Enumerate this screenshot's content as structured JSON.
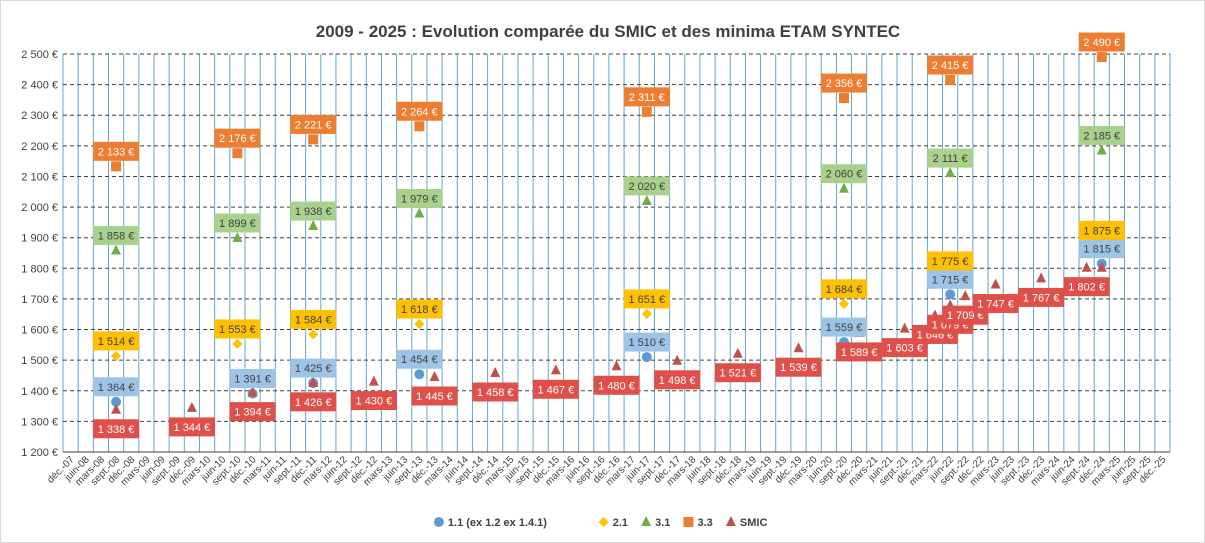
{
  "chart_data": {
    "type": "scatter",
    "title": "2009 - 2025 : Evolution  comparée  du SMIC et des minima  ETAM  SYNTEC",
    "xlabel": "",
    "ylabel": "",
    "ylim": [
      1200,
      2500
    ],
    "ystep": 100,
    "y_tick_labels": [
      "1 200 €",
      "1 300 €",
      "1 400 €",
      "1 500 €",
      "1 600 €",
      "1 700 €",
      "1 800 €",
      "1 900 €",
      "2 000 €",
      "2 100 €",
      "2 200 €",
      "2 300 €",
      "2 400 €",
      "2 500 €"
    ],
    "grid": true,
    "legend_position": "bottom",
    "categories": [
      "déc.-07",
      "juin-08",
      "mars-08",
      "sept.-08",
      "déc.-08",
      "mars-09",
      "juin-09",
      "sept.-09",
      "déc.-09",
      "mars-10",
      "juin-10",
      "sept.-10",
      "déc.-10",
      "mars-11",
      "juin-11",
      "sept.-11",
      "déc.-11",
      "mars-12",
      "juin-12",
      "sept.-12",
      "déc.-12",
      "mars-13",
      "juin-13",
      "sept.-13",
      "déc.-13",
      "mars-14",
      "juin-14",
      "sept.-14",
      "déc.-14",
      "mars-15",
      "juin-15",
      "sept.-15",
      "déc.-15",
      "mars-16",
      "juin-16",
      "sept.-16",
      "déc.-16",
      "mars-17",
      "juin-17",
      "sept.-17",
      "déc.-17",
      "mars-18",
      "juin-18",
      "sept.-18",
      "déc.-18",
      "mars-19",
      "juin-19",
      "sept.-19",
      "déc.-19",
      "mars-20",
      "juin-20",
      "sept.-20",
      "déc.-20",
      "mars-21",
      "juin-21",
      "sept.-21",
      "déc.-21",
      "mars-22",
      "juin-22",
      "sept.-22",
      "déc.-22",
      "mars-23",
      "juin-23",
      "sept.-23",
      "déc.-23",
      "mars-24",
      "juin-24",
      "sept.-24",
      "déc.-24",
      "mars-25",
      "juin-25",
      "sept.-25",
      "déc.-25"
    ],
    "series": [
      {
        "name": "1.1 (ex 1.2 ex 1.4.1)",
        "marker": "circle",
        "color": "#5b9bd5",
        "label_bg": "#9dc3e6",
        "label_color": "#404040",
        "points": [
          {
            "x": "sept.-08",
            "y": 1364,
            "label": "1 364 €"
          },
          {
            "x": "déc.-10",
            "y": 1391,
            "label": "1 391 €"
          },
          {
            "x": "déc.-11",
            "y": 1425,
            "label": "1 425 €"
          },
          {
            "x": "sept.-13",
            "y": 1454,
            "label": "1 454 €"
          },
          {
            "x": "juin-17",
            "y": 1510,
            "label": "1 510 €"
          },
          {
            "x": "sept.-20",
            "y": 1559,
            "label": "1 559 €"
          },
          {
            "x": "juin-22",
            "y": 1715,
            "label": "1 715 €"
          },
          {
            "x": "déc.-24",
            "y": 1815,
            "label": "1 815 €"
          }
        ]
      },
      {
        "name": "2.1",
        "marker": "diamond",
        "color": "#ffc000",
        "label_bg": "#ffc000",
        "label_color": "#404040",
        "points": [
          {
            "x": "sept.-08",
            "y": 1514,
            "label": "1 514 €"
          },
          {
            "x": "sept.-10",
            "y": 1553,
            "label": "1 553 €"
          },
          {
            "x": "déc.-11",
            "y": 1584,
            "label": "1 584 €"
          },
          {
            "x": "sept.-13",
            "y": 1618,
            "label": "1 618 €"
          },
          {
            "x": "juin-17",
            "y": 1651,
            "label": "1 651 €"
          },
          {
            "x": "sept.-20",
            "y": 1684,
            "label": "1 684 €"
          },
          {
            "x": "juin-22",
            "y": 1775,
            "label": "1 775 €"
          },
          {
            "x": "déc.-24",
            "y": 1875,
            "label": "1 875 €"
          }
        ]
      },
      {
        "name": "3.1",
        "marker": "triangle",
        "color": "#70ad47",
        "label_bg": "#a9d18e",
        "label_color": "#404040",
        "points": [
          {
            "x": "sept.-08",
            "y": 1858,
            "label": "1 858 €"
          },
          {
            "x": "sept.-10",
            "y": 1899,
            "label": "1 899 €"
          },
          {
            "x": "déc.-11",
            "y": 1938,
            "label": "1 938 €"
          },
          {
            "x": "sept.-13",
            "y": 1979,
            "label": "1 979 €"
          },
          {
            "x": "juin-17",
            "y": 2020,
            "label": "2 020 €"
          },
          {
            "x": "sept.-20",
            "y": 2060,
            "label": "2 060 €"
          },
          {
            "x": "juin-22",
            "y": 2111,
            "label": "2 111 €"
          },
          {
            "x": "déc.-24",
            "y": 2185,
            "label": "2 185 €"
          }
        ]
      },
      {
        "name": "3.3",
        "marker": "square",
        "color": "#ed7d31",
        "label_bg": "#ed7d31",
        "label_color": "#ffffff",
        "points": [
          {
            "x": "sept.-08",
            "y": 2133,
            "label": "2 133 €"
          },
          {
            "x": "sept.-10",
            "y": 2176,
            "label": "2 176 €"
          },
          {
            "x": "déc.-11",
            "y": 2221,
            "label": "2 221 €"
          },
          {
            "x": "sept.-13",
            "y": 2264,
            "label": "2 264 €"
          },
          {
            "x": "juin-17",
            "y": 2311,
            "label": "2 311 €"
          },
          {
            "x": "sept.-20",
            "y": 2356,
            "label": "2 356 €"
          },
          {
            "x": "juin-22",
            "y": 2415,
            "label": "2 415 €"
          },
          {
            "x": "déc.-24",
            "y": 2490,
            "label": "2 490 €"
          }
        ]
      },
      {
        "name": "SMIC",
        "marker": "triangle",
        "color": "#c0504d",
        "label_bg": "#e0504a",
        "label_color": "#ffffff",
        "points": [
          {
            "x": "sept.-08",
            "y": 1338,
            "label": "1 338 €"
          },
          {
            "x": "déc.-09",
            "y": 1344,
            "label": "1 344 €"
          },
          {
            "x": "déc.-10",
            "y": 1394,
            "label": "1 394 €"
          },
          {
            "x": "déc.-11",
            "y": 1426,
            "label": "1 426 €"
          },
          {
            "x": "déc.-12",
            "y": 1430,
            "label": "1 430 €"
          },
          {
            "x": "déc.-13",
            "y": 1445,
            "label": "1 445 €"
          },
          {
            "x": "déc.-14",
            "y": 1458,
            "label": "1 458 €"
          },
          {
            "x": "déc.-15",
            "y": 1467,
            "label": "1 467 €"
          },
          {
            "x": "déc.-16",
            "y": 1480,
            "label": "1 480 €"
          },
          {
            "x": "déc.-17",
            "y": 1498,
            "label": "1 498 €"
          },
          {
            "x": "déc.-18",
            "y": 1521,
            "label": "1 521 €"
          },
          {
            "x": "déc.-19",
            "y": 1539,
            "label": "1 539 €"
          },
          {
            "x": "déc.-20",
            "y": 1589,
            "label": "1 589 €"
          },
          {
            "x": "sept.-21",
            "y": 1603,
            "label": "1 603 €"
          },
          {
            "x": "mars-22",
            "y": 1646,
            "label": "1 646 €"
          },
          {
            "x": "juin-22",
            "y": 1679,
            "label": "1 679 €"
          },
          {
            "x": "sept.-22",
            "y": 1709,
            "label": "1 709 €"
          },
          {
            "x": "mars-23",
            "y": 1747,
            "label": "1 747 €"
          },
          {
            "x": "déc.-23",
            "y": 1767,
            "label": "1 767 €"
          },
          {
            "x": "sept.-24",
            "y": 1802,
            "label": "1 802 €"
          },
          {
            "x": "déc.-24",
            "y": 1802,
            "label": ""
          }
        ]
      }
    ]
  }
}
